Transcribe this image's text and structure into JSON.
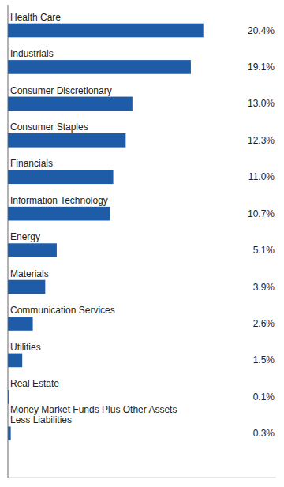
{
  "chart_data": {
    "type": "bar",
    "orientation": "horizontal",
    "categories": [
      "Health Care",
      "Industrials",
      "Consumer Discretionary",
      "Consumer Staples",
      "Financials",
      "Information Technology",
      "Energy",
      "Materials",
      "Communication Services",
      "Utilities",
      "Real Estate",
      "Money Market Funds Plus Other Assets\nLess Liabilities"
    ],
    "values": [
      20.4,
      19.1,
      13.0,
      12.3,
      11.0,
      10.7,
      5.1,
      3.9,
      2.6,
      1.5,
      0.1,
      0.3
    ],
    "value_labels": [
      "20.4%",
      "19.1%",
      "13.0%",
      "12.3%",
      "11.0%",
      "10.7%",
      "5.1%",
      "3.9%",
      "2.6%",
      "1.5%",
      "0.1%",
      "0.3%"
    ],
    "color": "#1F5CA8",
    "xlim": [
      0,
      28
    ],
    "data_labels": true,
    "tick_labels": "y"
  }
}
